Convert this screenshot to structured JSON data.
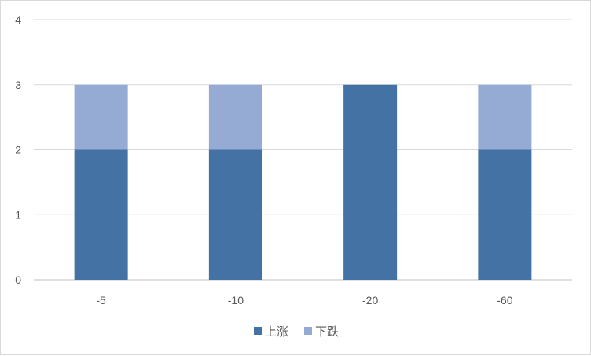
{
  "chart_data": {
    "type": "bar",
    "stacked": true,
    "categories": [
      "-5",
      "-10",
      "-20",
      "-60"
    ],
    "series": [
      {
        "name": "上涨",
        "values": [
          2,
          2,
          3,
          2
        ],
        "color": "#4472a4"
      },
      {
        "name": "下跌",
        "values": [
          1,
          1,
          0,
          1
        ],
        "color": "#95abd4"
      }
    ],
    "ylim": [
      0,
      4
    ],
    "yticks": [
      "0",
      "1",
      "2",
      "3",
      "4"
    ],
    "grid": true,
    "legend_position": "bottom",
    "title": "",
    "xlabel": "",
    "ylabel": ""
  }
}
